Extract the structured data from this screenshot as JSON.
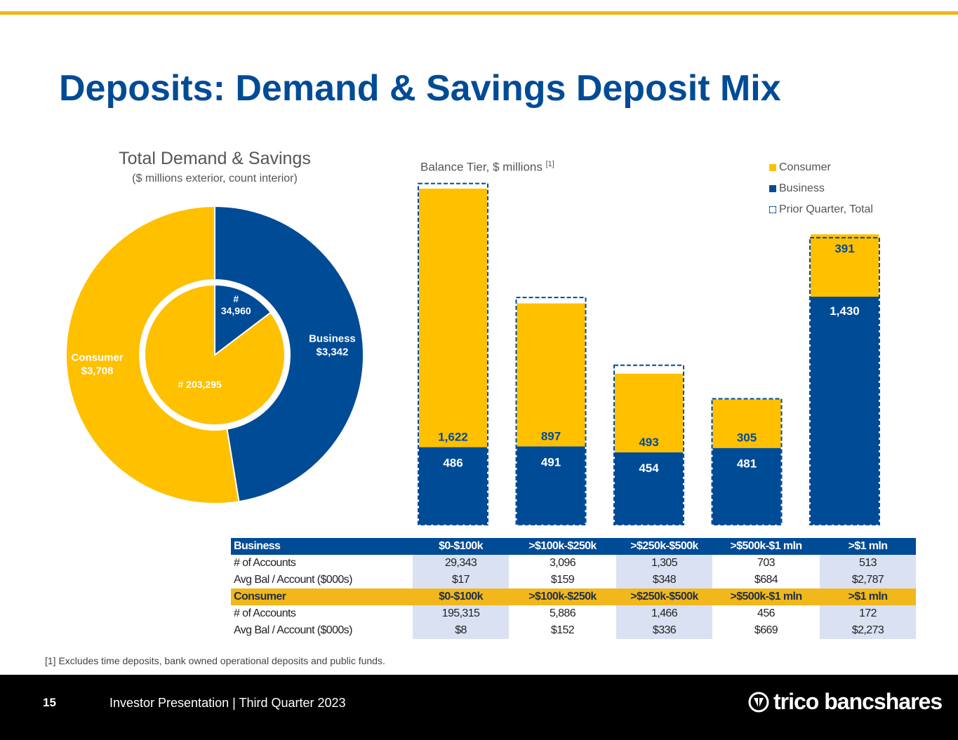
{
  "page": {
    "title": "Deposits: Demand & Savings Deposit Mix",
    "page_number": "15",
    "footer_text": "Investor Presentation | Third Quarter 2023",
    "logo_text": "trico bancshares",
    "footnote": "[1] Excludes time deposits, bank owned operational deposits and public funds."
  },
  "colors": {
    "business": "#004B96",
    "consumer": "#FFC000",
    "accent_rule": "#F2B71A",
    "table_shade": "#D9E1F2"
  },
  "chart_data": [
    {
      "type": "pie",
      "title": "Total Demand & Savings",
      "subtitle": "($ millions exterior, count interior)",
      "outer": {
        "slices": [
          {
            "name": "Business",
            "label": "Business",
            "value": 3342,
            "value_label": "$3,342"
          },
          {
            "name": "Consumer",
            "label": "Consumer",
            "value": 3708,
            "value_label": "$3,708"
          }
        ]
      },
      "inner": {
        "slices": [
          {
            "name": "Business",
            "value": 34960,
            "value_label": "#\n34,960"
          },
          {
            "name": "Consumer",
            "value": 203295,
            "value_label": "# 203,295"
          }
        ]
      }
    },
    {
      "type": "bar",
      "stacked": true,
      "title": "Balance Tier, $ millions",
      "title_sup": "[1]",
      "categories": [
        "$0-$100k",
        ">$100k-$250k",
        ">$250k-$500k",
        ">$500k-$1 mln",
        ">$1 mln"
      ],
      "series": [
        {
          "name": "Business",
          "values": [
            486,
            491,
            454,
            481,
            1430
          ],
          "labels": [
            "486",
            "491",
            "454",
            "481",
            "1,430"
          ]
        },
        {
          "name": "Consumer",
          "values": [
            1622,
            897,
            493,
            305,
            391
          ],
          "labels": [
            "1,622",
            "897",
            "493",
            "305",
            "391"
          ]
        }
      ],
      "prior_quarter_total": {
        "name": "Prior Quarter, Total",
        "values": [
          2140,
          1425,
          1000,
          790,
          1800
        ]
      },
      "legend": {
        "position": "top-right",
        "entries": [
          "Consumer",
          "Business",
          "Prior Quarter, Total"
        ]
      },
      "ylim": [
        0,
        2200
      ],
      "grid": false
    }
  ],
  "table": {
    "categories": [
      "$0-$100k",
      ">$100k-$250k",
      ">$250k-$500k",
      ">$500k-$1 mln",
      ">$1 mln"
    ],
    "business": {
      "header": "Business",
      "rows": [
        {
          "label": "# of Accounts",
          "values": [
            "29,343",
            "3,096",
            "1,305",
            "703",
            "513"
          ]
        },
        {
          "label": "Avg Bal / Account ($000s)",
          "values": [
            "$17",
            "$159",
            "$348",
            "$684",
            "$2,787"
          ]
        }
      ]
    },
    "consumer": {
      "header": "Consumer",
      "rows": [
        {
          "label": "# of Accounts",
          "values": [
            "195,315",
            "5,886",
            "1,466",
            "456",
            "172"
          ]
        },
        {
          "label": "Avg Bal / Account ($000s)",
          "values": [
            "$8",
            "$152",
            "$336",
            "$669",
            "$2,273"
          ]
        }
      ]
    }
  }
}
